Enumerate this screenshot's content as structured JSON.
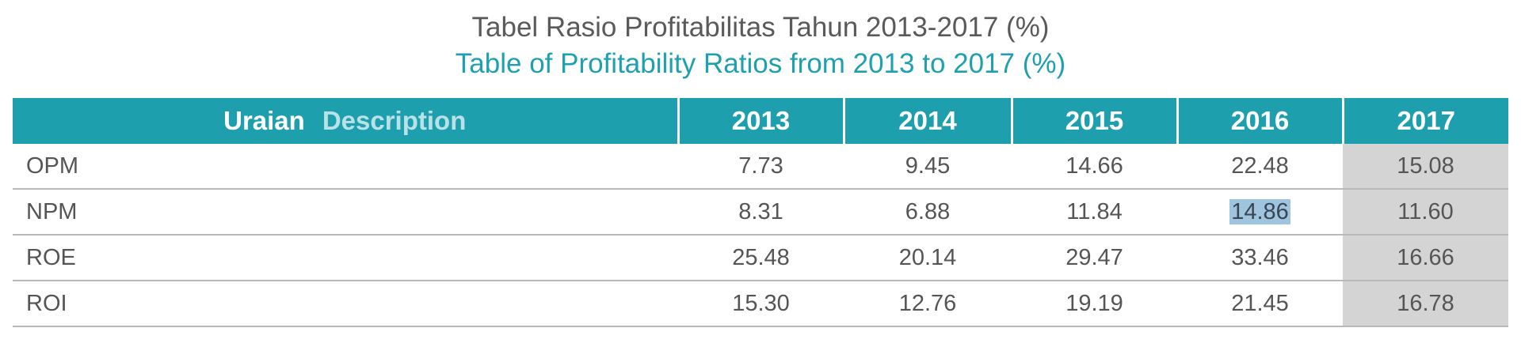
{
  "title": {
    "indonesian": "Tabel Rasio Profitabilitas Tahun 2013-2017 (%)",
    "english": "Table of Profitability Ratios from 2013 to 2017 (%)"
  },
  "table": {
    "header": {
      "description_id": "Uraian",
      "description_en": "Description",
      "years": [
        "2013",
        "2014",
        "2015",
        "2016",
        "2017"
      ]
    },
    "rows": [
      {
        "label": "OPM",
        "values": [
          "7.73",
          "9.45",
          "14.66",
          "22.48",
          "15.08"
        ]
      },
      {
        "label": "NPM",
        "values": [
          "8.31",
          "6.88",
          "11.84",
          "14.86",
          "11.60"
        ]
      },
      {
        "label": "ROE",
        "values": [
          "25.48",
          "20.14",
          "29.47",
          "33.46",
          "16.66"
        ]
      },
      {
        "label": "ROI",
        "values": [
          "15.30",
          "12.76",
          "19.19",
          "21.45",
          "16.78"
        ]
      }
    ]
  },
  "colors": {
    "header_bg": "#1e9fae",
    "title_accent": "#1fa0b0",
    "highlight_column_bg": "#d4d4d4",
    "text_selection_bg": "#9ec4e0"
  }
}
